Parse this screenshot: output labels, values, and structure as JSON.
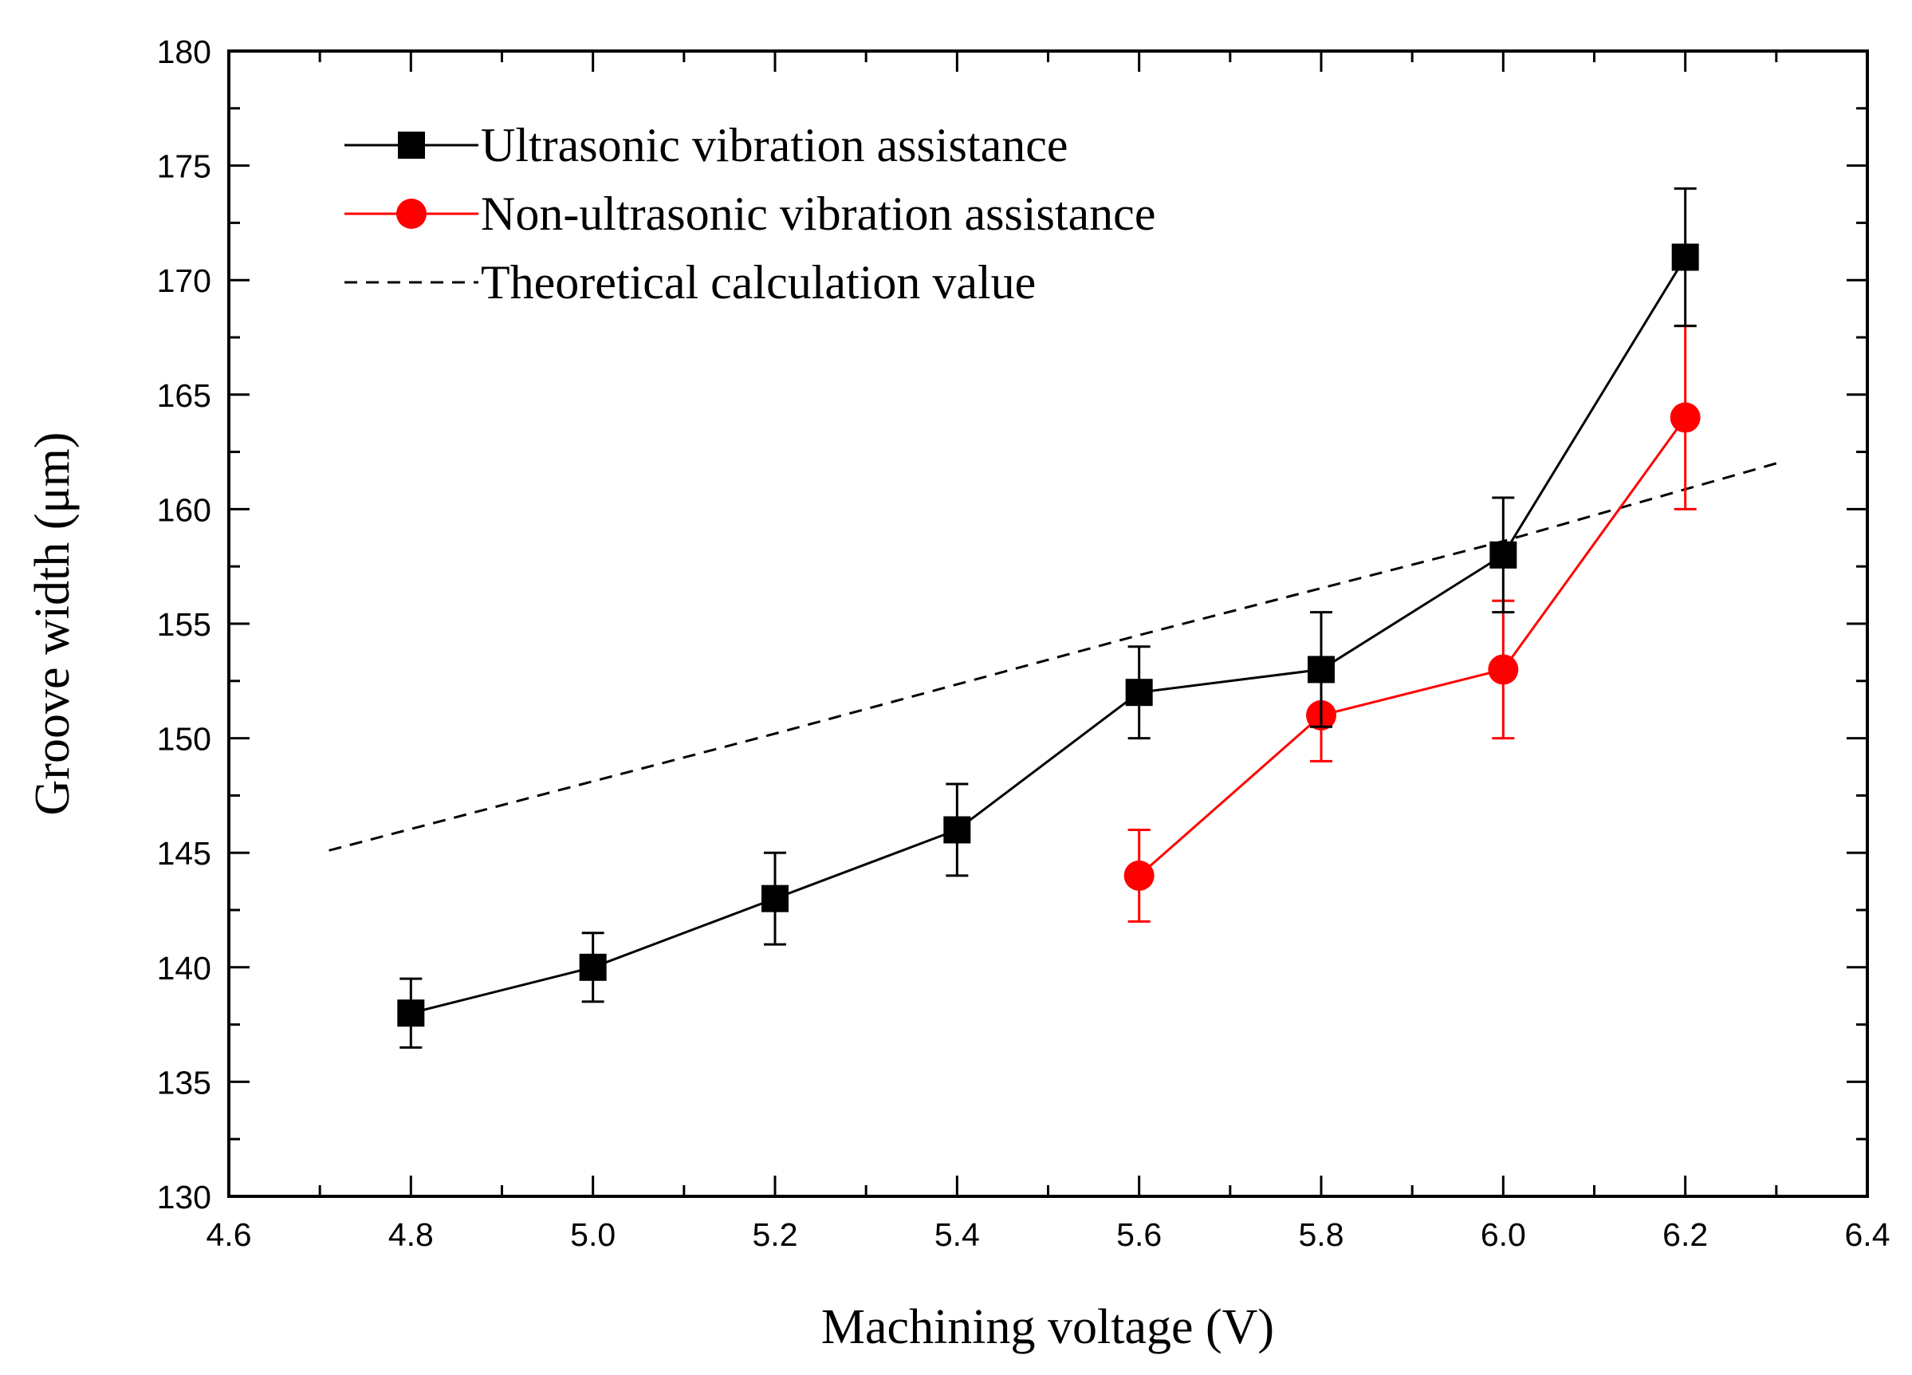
{
  "chart_data": {
    "type": "line",
    "title": "",
    "xlabel": "Machining voltage (V)",
    "ylabel": "Groove width (μm)",
    "xlim": [
      4.6,
      6.4
    ],
    "ylim": [
      130,
      180
    ],
    "x_ticks": [
      "4.6",
      "4.8",
      "5.0",
      "5.2",
      "5.4",
      "5.6",
      "5.8",
      "6.0",
      "6.2",
      "6.4"
    ],
    "y_ticks": [
      "130",
      "135",
      "140",
      "145",
      "150",
      "155",
      "160",
      "165",
      "170",
      "175",
      "180"
    ],
    "grid": false,
    "legend_position": "top-left",
    "series": [
      {
        "name": "Ultrasonic vibration assistance",
        "color": "#000000",
        "marker": "square",
        "line_style": "solid",
        "x": [
          4.8,
          5.0,
          5.2,
          5.4,
          5.6,
          5.8,
          6.0,
          6.2
        ],
        "y": [
          138,
          140,
          143,
          146,
          152,
          153,
          158,
          171
        ],
        "error_minus": [
          1.5,
          1.5,
          2,
          2,
          2,
          2.5,
          2.5,
          3
        ],
        "error_plus": [
          1.5,
          1.5,
          2,
          2,
          2,
          2.5,
          2.5,
          3
        ]
      },
      {
        "name": "Non-ultrasonic vibration assistance",
        "color": "#ff0000",
        "marker": "circle",
        "line_style": "solid",
        "x": [
          5.6,
          5.8,
          6.0,
          6.2
        ],
        "y": [
          144,
          151,
          153,
          164
        ],
        "error_minus": [
          2,
          2,
          3,
          4
        ],
        "error_plus": [
          2,
          2,
          3,
          4
        ]
      },
      {
        "name": "Theoretical calculation value",
        "color": "#000000",
        "marker": "none",
        "line_style": "dashed",
        "x": [
          4.71,
          5.2,
          5.6,
          6.0,
          6.3
        ],
        "y": [
          145.1,
          150.2,
          154.5,
          158.6,
          162
        ]
      }
    ]
  }
}
